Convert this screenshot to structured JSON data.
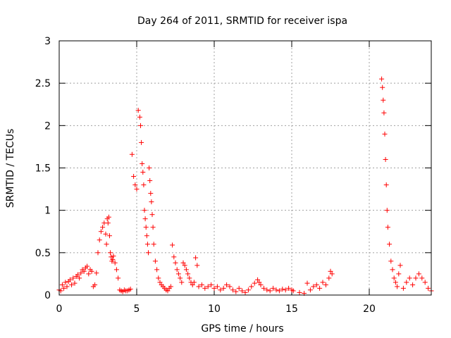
{
  "chart_data": {
    "type": "scatter",
    "title": "Day 264 of 2011, SRMTID for receiver ispa",
    "xlabel": "GPS time / hours",
    "ylabel": "SRMTID / TECUs",
    "xlim": [
      0,
      24
    ],
    "ylim": [
      0,
      3
    ],
    "xticks": [
      0,
      5,
      10,
      15,
      20
    ],
    "xtick_labels": [
      "0",
      "5",
      "10",
      "15",
      "20"
    ],
    "yticks": [
      0,
      0.5,
      1,
      1.5,
      2,
      2.5,
      3
    ],
    "ytick_labels": [
      "0",
      "0.5",
      "1",
      "1.5",
      "2",
      "2.5",
      "3"
    ],
    "grid": true,
    "marker": "+",
    "color": "#ff0000",
    "series": [
      {
        "name": "SRMTID",
        "x": [
          0.0,
          0.1,
          0.2,
          0.3,
          0.4,
          0.5,
          0.6,
          0.7,
          0.8,
          0.9,
          1.0,
          1.1,
          1.2,
          1.3,
          1.4,
          1.5,
          1.6,
          1.7,
          1.8,
          1.9,
          2.0,
          2.1,
          2.2,
          2.3,
          2.4,
          2.5,
          2.6,
          2.7,
          2.8,
          2.9,
          3.0,
          3.05,
          3.1,
          3.15,
          3.2,
          3.25,
          3.3,
          3.35,
          3.4,
          3.45,
          3.5,
          3.6,
          3.7,
          3.8,
          3.9,
          4.0,
          4.1,
          4.2,
          4.3,
          4.4,
          4.5,
          4.6,
          4.7,
          4.8,
          4.9,
          5.0,
          5.1,
          5.2,
          5.25,
          5.3,
          5.35,
          5.4,
          5.45,
          5.5,
          5.55,
          5.6,
          5.65,
          5.7,
          5.75,
          5.8,
          5.85,
          5.9,
          5.95,
          6.0,
          6.05,
          6.1,
          6.2,
          6.3,
          6.4,
          6.5,
          6.6,
          6.7,
          6.8,
          6.9,
          7.0,
          7.1,
          7.2,
          7.3,
          7.4,
          7.5,
          7.6,
          7.7,
          7.8,
          7.9,
          8.0,
          8.1,
          8.2,
          8.3,
          8.4,
          8.5,
          8.6,
          8.7,
          8.8,
          8.9,
          9.0,
          9.2,
          9.4,
          9.6,
          9.8,
          10.0,
          10.2,
          10.4,
          10.6,
          10.8,
          11.0,
          11.2,
          11.4,
          11.6,
          11.8,
          12.0,
          12.2,
          12.4,
          12.6,
          12.8,
          12.9,
          13.0,
          13.2,
          13.4,
          13.6,
          13.8,
          14.0,
          14.2,
          14.4,
          14.6,
          14.8,
          15.0,
          15.1,
          15.5,
          15.8,
          16.0,
          16.2,
          16.4,
          16.6,
          16.8,
          17.0,
          17.2,
          17.4,
          17.5,
          17.6,
          20.8,
          20.85,
          20.9,
          20.95,
          21.0,
          21.05,
          21.1,
          21.15,
          21.2,
          21.3,
          21.4,
          21.5,
          21.6,
          21.7,
          21.8,
          21.9,
          22.0,
          22.2,
          22.4,
          22.6,
          22.8,
          23.0,
          23.2,
          23.4,
          23.6,
          23.8,
          24.0
        ],
        "y": [
          0.06,
          0.05,
          0.12,
          0.08,
          0.15,
          0.1,
          0.16,
          0.18,
          0.12,
          0.2,
          0.14,
          0.22,
          0.24,
          0.2,
          0.26,
          0.3,
          0.28,
          0.32,
          0.34,
          0.25,
          0.3,
          0.28,
          0.1,
          0.12,
          0.26,
          0.5,
          0.65,
          0.75,
          0.8,
          0.85,
          0.72,
          0.6,
          0.9,
          0.85,
          0.92,
          0.7,
          0.5,
          0.45,
          0.4,
          0.42,
          0.46,
          0.38,
          0.3,
          0.2,
          0.06,
          0.05,
          0.04,
          0.06,
          0.05,
          0.05,
          0.06,
          0.07,
          1.66,
          1.4,
          1.3,
          1.25,
          2.18,
          2.1,
          2.0,
          1.8,
          1.55,
          1.45,
          1.3,
          1.0,
          0.9,
          0.8,
          0.7,
          0.6,
          0.5,
          1.5,
          1.35,
          1.2,
          1.1,
          0.95,
          0.8,
          0.6,
          0.4,
          0.3,
          0.2,
          0.15,
          0.12,
          0.1,
          0.08,
          0.06,
          0.05,
          0.08,
          0.1,
          0.59,
          0.45,
          0.38,
          0.3,
          0.25,
          0.2,
          0.15,
          0.38,
          0.35,
          0.3,
          0.25,
          0.2,
          0.15,
          0.12,
          0.15,
          0.44,
          0.35,
          0.1,
          0.12,
          0.08,
          0.1,
          0.12,
          0.08,
          0.1,
          0.06,
          0.08,
          0.12,
          0.1,
          0.06,
          0.04,
          0.08,
          0.05,
          0.03,
          0.06,
          0.1,
          0.14,
          0.18,
          0.15,
          0.12,
          0.08,
          0.06,
          0.05,
          0.08,
          0.06,
          0.05,
          0.07,
          0.06,
          0.08,
          0.06,
          0.05,
          0.03,
          0.02,
          0.14,
          0.06,
          0.1,
          0.12,
          0.08,
          0.15,
          0.12,
          0.2,
          0.28,
          0.25,
          2.55,
          2.45,
          2.3,
          2.15,
          1.9,
          1.6,
          1.3,
          1.0,
          0.8,
          0.6,
          0.4,
          0.3,
          0.2,
          0.15,
          0.1,
          0.25,
          0.35,
          0.08,
          0.15,
          0.2,
          0.12,
          0.2,
          0.25,
          0.2,
          0.15,
          0.08,
          0.05
        ]
      }
    ]
  }
}
